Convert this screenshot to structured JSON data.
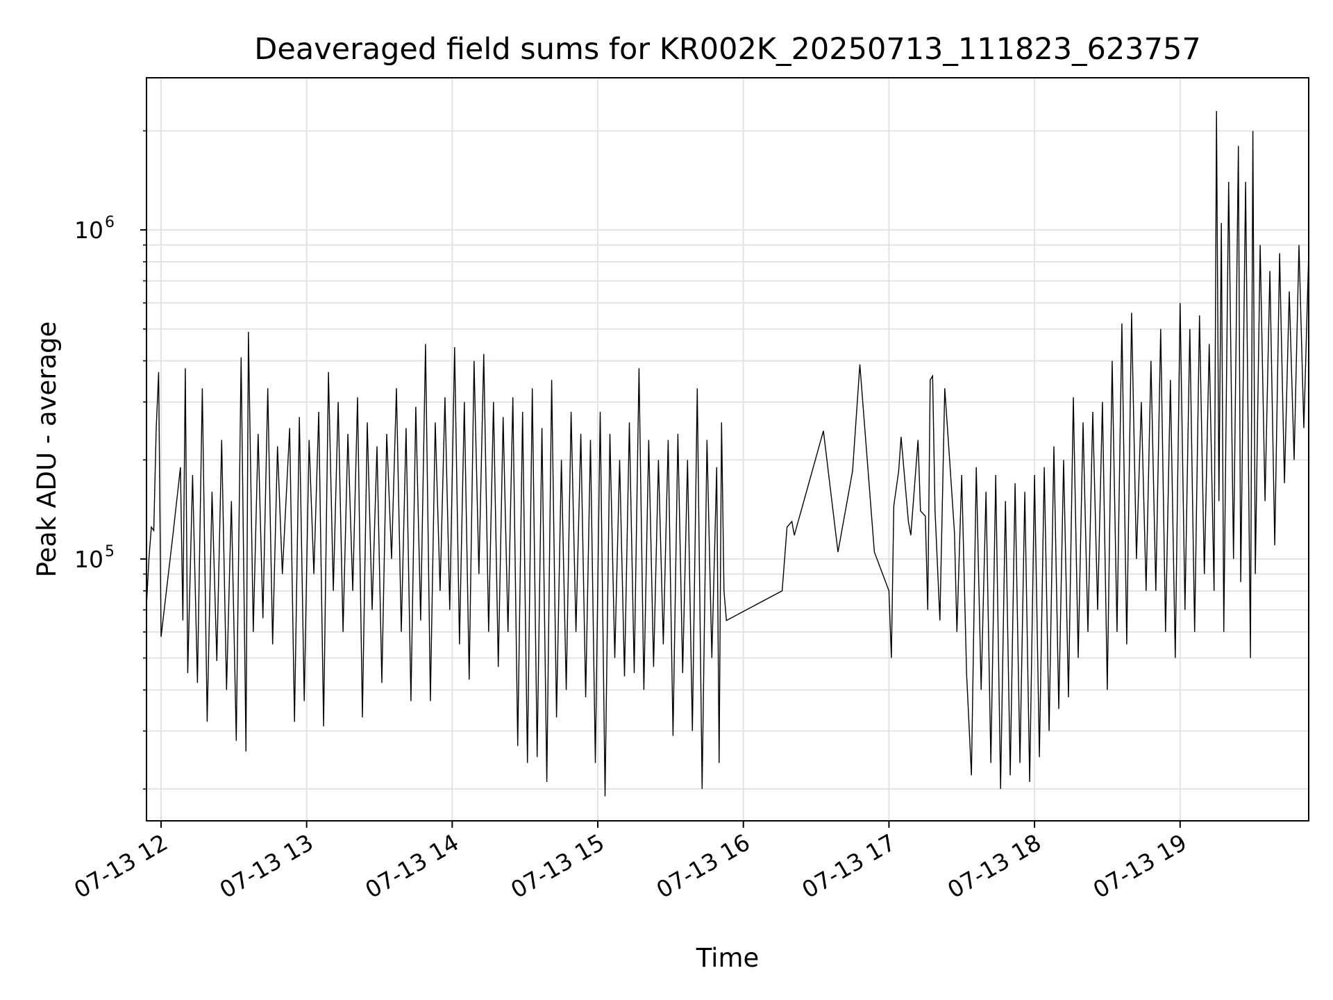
{
  "chart_data": {
    "type": "line",
    "title": "Deaveraged field sums for KR002K_20250713_111823_623757",
    "xlabel": "Time",
    "ylabel": "Peak ADU - average",
    "x_ticks": [
      "07-13 12",
      "07-13 13",
      "07-13 14",
      "07-13 15",
      "07-13 16",
      "07-13 17",
      "07-13 18",
      "07-13 19"
    ],
    "y_ticks": [
      {
        "value": 100000,
        "base": "10",
        "exponent": "5"
      },
      {
        "value": 1000000,
        "base": "10",
        "exponent": "6"
      }
    ],
    "x_range": [
      "2025-07-13 11:54",
      "2025-07-13 19:53"
    ],
    "ylim": [
      16000,
      2900000
    ],
    "y_scale": "log",
    "grid": true,
    "line_color": "#000000",
    "series": [
      {
        "points": [
          [
            "2025-07-13 11:54",
            72000
          ],
          [
            "2025-07-13 11:55",
            100000
          ],
          [
            "2025-07-13 11:56",
            125000
          ],
          [
            "2025-07-13 11:57",
            122000
          ],
          [
            "2025-07-13 11:58",
            250000
          ],
          [
            "2025-07-13 11:59",
            370000
          ],
          [
            "2025-07-13 12:00",
            58000
          ],
          [
            "2025-07-13 12:05",
            120000
          ],
          [
            "2025-07-13 12:08",
            190000
          ],
          [
            "2025-07-13 12:09",
            65000
          ],
          [
            "2025-07-13 12:10",
            380000
          ],
          [
            "2025-07-13 12:11",
            45000
          ],
          [
            "2025-07-13 12:13",
            180000
          ],
          [
            "2025-07-13 12:15",
            42000
          ],
          [
            "2025-07-13 12:17",
            330000
          ],
          [
            "2025-07-13 12:19",
            32000
          ],
          [
            "2025-07-13 12:21",
            160000
          ],
          [
            "2025-07-13 12:23",
            49000
          ],
          [
            "2025-07-13 12:25",
            230000
          ],
          [
            "2025-07-13 12:27",
            40000
          ],
          [
            "2025-07-13 12:29",
            150000
          ],
          [
            "2025-07-13 12:31",
            28000
          ],
          [
            "2025-07-13 12:33",
            410000
          ],
          [
            "2025-07-13 12:35",
            26000
          ],
          [
            "2025-07-13 12:36",
            490000
          ],
          [
            "2025-07-13 12:38",
            60000
          ],
          [
            "2025-07-13 12:40",
            240000
          ],
          [
            "2025-07-13 12:42",
            66000
          ],
          [
            "2025-07-13 12:44",
            330000
          ],
          [
            "2025-07-13 12:46",
            55000
          ],
          [
            "2025-07-13 12:48",
            220000
          ],
          [
            "2025-07-13 12:50",
            90000
          ],
          [
            "2025-07-13 12:53",
            250000
          ],
          [
            "2025-07-13 12:55",
            32000
          ],
          [
            "2025-07-13 12:57",
            270000
          ],
          [
            "2025-07-13 12:59",
            37000
          ],
          [
            "2025-07-13 13:01",
            230000
          ],
          [
            "2025-07-13 13:03",
            90000
          ],
          [
            "2025-07-13 13:05",
            280000
          ],
          [
            "2025-07-13 13:07",
            31000
          ],
          [
            "2025-07-13 13:09",
            370000
          ],
          [
            "2025-07-13 13:11",
            80000
          ],
          [
            "2025-07-13 13:13",
            300000
          ],
          [
            "2025-07-13 13:15",
            60000
          ],
          [
            "2025-07-13 13:17",
            240000
          ],
          [
            "2025-07-13 13:19",
            80000
          ],
          [
            "2025-07-13 13:21",
            310000
          ],
          [
            "2025-07-13 13:23",
            33000
          ],
          [
            "2025-07-13 13:25",
            260000
          ],
          [
            "2025-07-13 13:27",
            70000
          ],
          [
            "2025-07-13 13:29",
            220000
          ],
          [
            "2025-07-13 13:31",
            42000
          ],
          [
            "2025-07-13 13:33",
            240000
          ],
          [
            "2025-07-13 13:35",
            100000
          ],
          [
            "2025-07-13 13:37",
            330000
          ],
          [
            "2025-07-13 13:39",
            60000
          ],
          [
            "2025-07-13 13:41",
            250000
          ],
          [
            "2025-07-13 13:43",
            37000
          ],
          [
            "2025-07-13 13:45",
            290000
          ],
          [
            "2025-07-13 13:47",
            65000
          ],
          [
            "2025-07-13 13:49",
            450000
          ],
          [
            "2025-07-13 13:51",
            37000
          ],
          [
            "2025-07-13 13:53",
            260000
          ],
          [
            "2025-07-13 13:55",
            80000
          ],
          [
            "2025-07-13 13:57",
            310000
          ],
          [
            "2025-07-13 13:59",
            70000
          ],
          [
            "2025-07-13 14:01",
            440000
          ],
          [
            "2025-07-13 14:03",
            55000
          ],
          [
            "2025-07-13 14:05",
            300000
          ],
          [
            "2025-07-13 14:07",
            43000
          ],
          [
            "2025-07-13 14:09",
            400000
          ],
          [
            "2025-07-13 14:11",
            90000
          ],
          [
            "2025-07-13 14:13",
            420000
          ],
          [
            "2025-07-13 14:15",
            60000
          ],
          [
            "2025-07-13 14:17",
            300000
          ],
          [
            "2025-07-13 14:19",
            47000
          ],
          [
            "2025-07-13 14:21",
            270000
          ],
          [
            "2025-07-13 14:23",
            60000
          ],
          [
            "2025-07-13 14:25",
            310000
          ],
          [
            "2025-07-13 14:27",
            27000
          ],
          [
            "2025-07-13 14:29",
            280000
          ],
          [
            "2025-07-13 14:31",
            24000
          ],
          [
            "2025-07-13 14:33",
            330000
          ],
          [
            "2025-07-13 14:35",
            25000
          ],
          [
            "2025-07-13 14:37",
            250000
          ],
          [
            "2025-07-13 14:39",
            21000
          ],
          [
            "2025-07-13 14:41",
            350000
          ],
          [
            "2025-07-13 14:43",
            33000
          ],
          [
            "2025-07-13 14:45",
            200000
          ],
          [
            "2025-07-13 14:47",
            40000
          ],
          [
            "2025-07-13 14:49",
            280000
          ],
          [
            "2025-07-13 14:51",
            60000
          ],
          [
            "2025-07-13 14:53",
            240000
          ],
          [
            "2025-07-13 14:55",
            38000
          ],
          [
            "2025-07-13 14:57",
            230000
          ],
          [
            "2025-07-13 14:59",
            24000
          ],
          [
            "2025-07-13 15:01",
            280000
          ],
          [
            "2025-07-13 15:03",
            19000
          ],
          [
            "2025-07-13 15:05",
            240000
          ],
          [
            "2025-07-13 15:07",
            50000
          ],
          [
            "2025-07-13 15:09",
            200000
          ],
          [
            "2025-07-13 15:11",
            44000
          ],
          [
            "2025-07-13 15:13",
            260000
          ],
          [
            "2025-07-13 15:15",
            45000
          ],
          [
            "2025-07-13 15:17",
            380000
          ],
          [
            "2025-07-13 15:19",
            40000
          ],
          [
            "2025-07-13 15:21",
            230000
          ],
          [
            "2025-07-13 15:23",
            47000
          ],
          [
            "2025-07-13 15:25",
            200000
          ],
          [
            "2025-07-13 15:27",
            55000
          ],
          [
            "2025-07-13 15:29",
            230000
          ],
          [
            "2025-07-13 15:31",
            29000
          ],
          [
            "2025-07-13 15:33",
            240000
          ],
          [
            "2025-07-13 15:35",
            45000
          ],
          [
            "2025-07-13 15:37",
            200000
          ],
          [
            "2025-07-13 15:39",
            30000
          ],
          [
            "2025-07-13 15:41",
            330000
          ],
          [
            "2025-07-13 15:43",
            20000
          ],
          [
            "2025-07-13 15:45",
            230000
          ],
          [
            "2025-07-13 15:47",
            50000
          ],
          [
            "2025-07-13 15:49",
            190000
          ],
          [
            "2025-07-13 15:50",
            24000
          ],
          [
            "2025-07-13 15:51",
            260000
          ],
          [
            "2025-07-13 15:52",
            80000
          ],
          [
            "2025-07-13 15:53",
            65000
          ],
          [
            "2025-07-13 16:16",
            80000
          ],
          [
            "2025-07-13 16:18",
            125000
          ],
          [
            "2025-07-13 16:20",
            130000
          ],
          [
            "2025-07-13 16:21",
            118000
          ],
          [
            "2025-07-13 16:33",
            245000
          ],
          [
            "2025-07-13 16:39",
            105000
          ],
          [
            "2025-07-13 16:45",
            185000
          ],
          [
            "2025-07-13 16:48",
            390000
          ],
          [
            "2025-07-13 16:54",
            105000
          ],
          [
            "2025-07-13 17:00",
            80000
          ],
          [
            "2025-07-13 17:01",
            50000
          ],
          [
            "2025-07-13 17:02",
            145000
          ],
          [
            "2025-07-13 17:04",
            185000
          ],
          [
            "2025-07-13 17:05",
            235000
          ],
          [
            "2025-07-13 17:08",
            130000
          ],
          [
            "2025-07-13 17:09",
            118000
          ],
          [
            "2025-07-13 17:12",
            230000
          ],
          [
            "2025-07-13 17:13",
            140000
          ],
          [
            "2025-07-13 17:15",
            135000
          ],
          [
            "2025-07-13 17:16",
            70000
          ],
          [
            "2025-07-13 17:17",
            350000
          ],
          [
            "2025-07-13 17:18",
            360000
          ],
          [
            "2025-07-13 17:19",
            140000
          ],
          [
            "2025-07-13 17:21",
            65000
          ],
          [
            "2025-07-13 17:23",
            330000
          ],
          [
            "2025-07-13 17:25",
            200000
          ],
          [
            "2025-07-13 17:27",
            120000
          ],
          [
            "2025-07-13 17:28",
            60000
          ],
          [
            "2025-07-13 17:30",
            180000
          ],
          [
            "2025-07-13 17:32",
            45000
          ],
          [
            "2025-07-13 17:34",
            22000
          ],
          [
            "2025-07-13 17:36",
            190000
          ],
          [
            "2025-07-13 17:38",
            40000
          ],
          [
            "2025-07-13 17:40",
            160000
          ],
          [
            "2025-07-13 17:42",
            24000
          ],
          [
            "2025-07-13 17:44",
            180000
          ],
          [
            "2025-07-13 17:46",
            20000
          ],
          [
            "2025-07-13 17:48",
            150000
          ],
          [
            "2025-07-13 17:50",
            22000
          ],
          [
            "2025-07-13 17:52",
            170000
          ],
          [
            "2025-07-13 17:54",
            24000
          ],
          [
            "2025-07-13 17:56",
            160000
          ],
          [
            "2025-07-13 17:58",
            21000
          ],
          [
            "2025-07-13 18:00",
            180000
          ],
          [
            "2025-07-13 18:02",
            25000
          ],
          [
            "2025-07-13 18:04",
            190000
          ],
          [
            "2025-07-13 18:06",
            30000
          ],
          [
            "2025-07-13 18:08",
            220000
          ],
          [
            "2025-07-13 18:10",
            35000
          ],
          [
            "2025-07-13 18:12",
            200000
          ],
          [
            "2025-07-13 18:14",
            38000
          ],
          [
            "2025-07-13 18:16",
            310000
          ],
          [
            "2025-07-13 18:18",
            50000
          ],
          [
            "2025-07-13 18:20",
            260000
          ],
          [
            "2025-07-13 18:22",
            60000
          ],
          [
            "2025-07-13 18:24",
            280000
          ],
          [
            "2025-07-13 18:26",
            70000
          ],
          [
            "2025-07-13 18:28",
            300000
          ],
          [
            "2025-07-13 18:30",
            40000
          ],
          [
            "2025-07-13 18:32",
            400000
          ],
          [
            "2025-07-13 18:34",
            60000
          ],
          [
            "2025-07-13 18:36",
            520000
          ],
          [
            "2025-07-13 18:38",
            55000
          ],
          [
            "2025-07-13 18:40",
            560000
          ],
          [
            "2025-07-13 18:42",
            100000
          ],
          [
            "2025-07-13 18:44",
            300000
          ],
          [
            "2025-07-13 18:46",
            80000
          ],
          [
            "2025-07-13 18:48",
            400000
          ],
          [
            "2025-07-13 18:50",
            80000
          ],
          [
            "2025-07-13 18:52",
            500000
          ],
          [
            "2025-07-13 18:54",
            60000
          ],
          [
            "2025-07-13 18:56",
            350000
          ],
          [
            "2025-07-13 18:58",
            50000
          ],
          [
            "2025-07-13 19:00",
            600000
          ],
          [
            "2025-07-13 19:02",
            70000
          ],
          [
            "2025-07-13 19:04",
            500000
          ],
          [
            "2025-07-13 19:06",
            60000
          ],
          [
            "2025-07-13 19:08",
            550000
          ],
          [
            "2025-07-13 19:10",
            90000
          ],
          [
            "2025-07-13 19:12",
            450000
          ],
          [
            "2025-07-13 19:14",
            80000
          ],
          [
            "2025-07-13 19:15",
            2300000
          ],
          [
            "2025-07-13 19:16",
            150000
          ],
          [
            "2025-07-13 19:17",
            1050000
          ],
          [
            "2025-07-13 19:18",
            60000
          ],
          [
            "2025-07-13 19:20",
            1400000
          ],
          [
            "2025-07-13 19:22",
            100000
          ],
          [
            "2025-07-13 19:24",
            1800000
          ],
          [
            "2025-07-13 19:25",
            85000
          ],
          [
            "2025-07-13 19:27",
            1400000
          ],
          [
            "2025-07-13 19:29",
            50000
          ],
          [
            "2025-07-13 19:30",
            2000000
          ],
          [
            "2025-07-13 19:31",
            90000
          ],
          [
            "2025-07-13 19:33",
            900000
          ],
          [
            "2025-07-13 19:35",
            150000
          ],
          [
            "2025-07-13 19:37",
            750000
          ],
          [
            "2025-07-13 19:39",
            110000
          ],
          [
            "2025-07-13 19:41",
            850000
          ],
          [
            "2025-07-13 19:43",
            170000
          ],
          [
            "2025-07-13 19:45",
            650000
          ],
          [
            "2025-07-13 19:47",
            200000
          ],
          [
            "2025-07-13 19:49",
            900000
          ],
          [
            "2025-07-13 19:51",
            250000
          ],
          [
            "2025-07-13 19:53",
            850000
          ]
        ]
      }
    ]
  }
}
